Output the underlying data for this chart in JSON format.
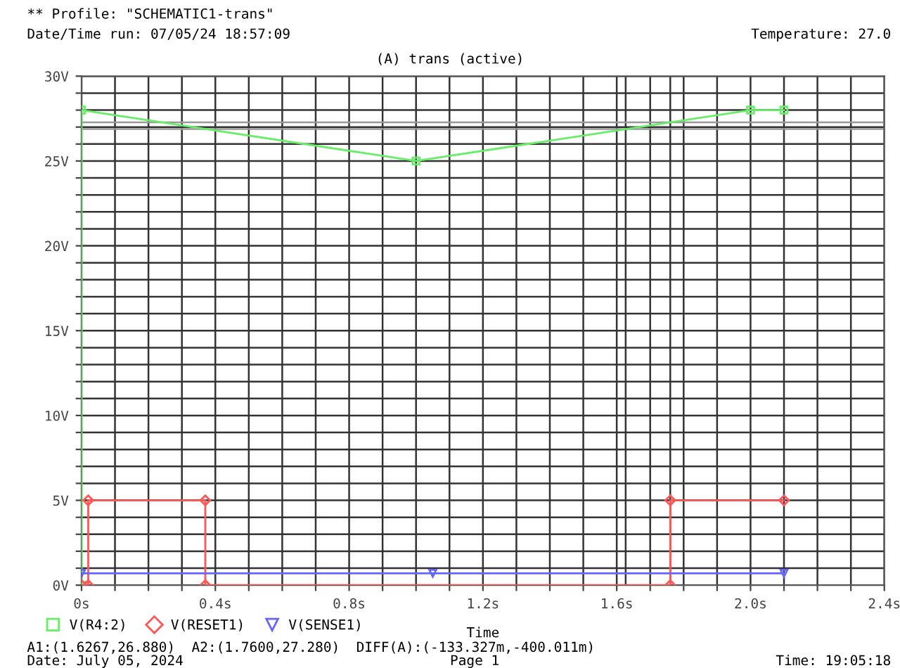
{
  "chart_data": {
    "type": "line",
    "title": "** Profile: \"SCHEMATIC1-trans\"",
    "subtitle": "(A) trans (active)",
    "xlabel": "Time",
    "annotations": [
      "Date/Time run: 07/05/24 18:57:09",
      "Temperature: 27.0",
      "A1:(1.6267,26.880)  A2:(1.7600,27.280)  DIFF(A):(-133.327m,-400.011m)",
      "Date: July 05, 2024",
      "Page 1",
      "Time: 19:05:18"
    ],
    "series": [
      {
        "name": "V(R4:2)",
        "color": "#66ee66",
        "marker": "square",
        "x": [
          0,
          0,
          1.0,
          2.0,
          2.1
        ],
        "values": [
          0,
          28,
          25,
          28,
          28
        ]
      },
      {
        "name": "V(RESET1)",
        "color": "#ff5555",
        "marker": "diamond",
        "x": [
          0,
          0.02,
          0.02,
          0.37,
          0.37,
          1.76,
          1.76,
          2.1
        ],
        "values": [
          0,
          0,
          5,
          5,
          0,
          0,
          5,
          5
        ]
      },
      {
        "name": "V(SENSE1)",
        "color": "#6666ff",
        "marker": "triangle",
        "x": [
          0,
          1.05,
          2.1
        ],
        "values": [
          0.7,
          0.7,
          0.7
        ]
      }
    ],
    "xlim": [
      0,
      2.4
    ],
    "ylim": [
      0,
      30
    ],
    "xticks": [
      {
        "value": 0,
        "label": "0s"
      },
      {
        "value": 0.1,
        "label": null
      },
      {
        "value": 0.2,
        "label": null
      },
      {
        "value": 0.3,
        "label": null
      },
      {
        "value": 0.4,
        "label": "0.4s"
      },
      {
        "value": 0.5,
        "label": null
      },
      {
        "value": 0.6,
        "label": null
      },
      {
        "value": 0.7,
        "label": null
      },
      {
        "value": 0.8,
        "label": "0.8s"
      },
      {
        "value": 0.9,
        "label": null
      },
      {
        "value": 1.0,
        "label": null
      },
      {
        "value": 1.1,
        "label": null
      },
      {
        "value": 1.2,
        "label": "1.2s"
      },
      {
        "value": 1.3,
        "label": null
      },
      {
        "value": 1.4,
        "label": null
      },
      {
        "value": 1.5,
        "label": null
      },
      {
        "value": 1.6,
        "label": "1.6s"
      },
      {
        "value": 1.7,
        "label": null
      },
      {
        "value": 1.8,
        "label": null
      },
      {
        "value": 1.9,
        "label": null
      },
      {
        "value": 2.0,
        "label": "2.0s"
      },
      {
        "value": 2.1,
        "label": null
      },
      {
        "value": 2.2,
        "label": null
      },
      {
        "value": 2.3,
        "label": null
      },
      {
        "value": 2.4,
        "label": "2.4s"
      }
    ],
    "yticks": [
      {
        "value": 0,
        "label": "0V"
      },
      {
        "value": 1,
        "label": null
      },
      {
        "value": 2,
        "label": null
      },
      {
        "value": 3,
        "label": null
      },
      {
        "value": 4,
        "label": null
      },
      {
        "value": 5,
        "label": "5V"
      },
      {
        "value": 6,
        "label": null
      },
      {
        "value": 7,
        "label": null
      },
      {
        "value": 8,
        "label": null
      },
      {
        "value": 9,
        "label": null
      },
      {
        "value": 10,
        "label": "10V"
      },
      {
        "value": 11,
        "label": null
      },
      {
        "value": 12,
        "label": null
      },
      {
        "value": 13,
        "label": null
      },
      {
        "value": 14,
        "label": null
      },
      {
        "value": 15,
        "label": "15V"
      },
      {
        "value": 16,
        "label": null
      },
      {
        "value": 17,
        "label": null
      },
      {
        "value": 18,
        "label": null
      },
      {
        "value": 19,
        "label": null
      },
      {
        "value": 20,
        "label": "20V"
      },
      {
        "value": 21,
        "label": null
      },
      {
        "value": 22,
        "label": null
      },
      {
        "value": 23,
        "label": null
      },
      {
        "value": 24,
        "label": null
      },
      {
        "value": 25,
        "label": "25V"
      },
      {
        "value": 26,
        "label": null
      },
      {
        "value": 27,
        "label": null
      },
      {
        "value": 28,
        "label": null
      },
      {
        "value": 29,
        "label": null
      },
      {
        "value": 30,
        "label": "30V"
      }
    ],
    "ref_lines": [
      {
        "axis": "x",
        "value": 1.6267,
        "color": "#333333"
      },
      {
        "axis": "x",
        "value": 1.76,
        "color": "#333333"
      },
      {
        "axis": "y",
        "value": 26.88,
        "color": "#999999"
      },
      {
        "axis": "y",
        "value": 27.28,
        "color": "#999999"
      }
    ],
    "grid": true,
    "legend": "bottom left"
  }
}
